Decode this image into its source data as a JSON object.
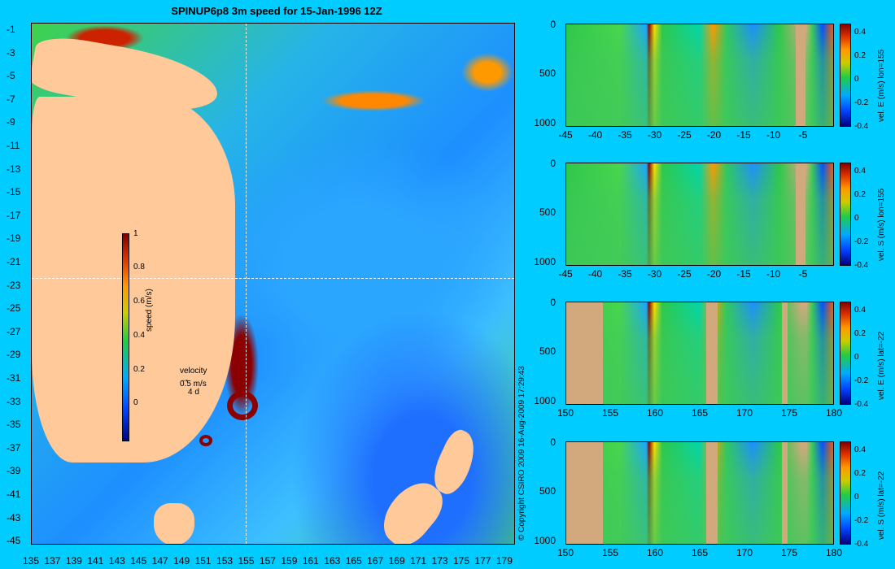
{
  "title": "SPINUP6p8 3m speed for 15-Jan-1996 12Z",
  "map": {
    "lat_labels": [
      "-1",
      "-3",
      "-5",
      "-7",
      "-9",
      "-11",
      "-13",
      "-15",
      "-17",
      "-19",
      "-21",
      "-23",
      "-25",
      "-27",
      "-29",
      "-31",
      "-33",
      "-35",
      "-37",
      "-39",
      "-41",
      "-43",
      "-45"
    ],
    "lon_labels": [
      "135",
      "137",
      "139",
      "141",
      "143",
      "145",
      "147",
      "149",
      "151",
      "153",
      "155",
      "157",
      "159",
      "161",
      "163",
      "165",
      "167",
      "169",
      "171",
      "173",
      "175",
      "177",
      "179"
    ],
    "speed_colorbar": {
      "label": "speed (m/s)",
      "ticks": [
        "1",
        "0.8",
        "0.6",
        "0.4",
        "0.2",
        "0"
      ]
    },
    "velocity_key": [
      "velocity",
      "0.5 m/s",
      "4 d"
    ],
    "colors": {
      "land": "#ffc99a",
      "background": "#00ccff"
    }
  },
  "copyright": "© Copyright CSIRO 2009  16-Aug-2009 17:29:43",
  "panels": [
    {
      "label": "vel. E (m/s) lon=155",
      "y_ticks": [
        "0",
        "500",
        "1000"
      ],
      "x_ticks": [
        "-45",
        "-40",
        "-35",
        "-30",
        "-25",
        "-20",
        "-15",
        "-10",
        "-5"
      ],
      "c_ticks": [
        "0.4",
        "0.2",
        "0",
        "-0.2",
        "-0.4"
      ]
    },
    {
      "label": "vel. S (m/s) lon=155",
      "y_ticks": [
        "0",
        "500",
        "1000"
      ],
      "x_ticks": [
        "-45",
        "-40",
        "-35",
        "-30",
        "-25",
        "-20",
        "-15",
        "-10",
        "-5"
      ],
      "c_ticks": [
        "0.4",
        "0.2",
        "0",
        "-0.2",
        "-0.4"
      ]
    },
    {
      "label": "vel. E (m/s) lat=-22",
      "y_ticks": [
        "0",
        "500",
        "1000"
      ],
      "x_ticks": [
        "150",
        "155",
        "160",
        "165",
        "170",
        "175",
        "180"
      ],
      "c_ticks": [
        "0.4",
        "0.2",
        "0",
        "-0.2",
        "-0.4"
      ]
    },
    {
      "label": "vel. S (m/s) lat=-22",
      "y_ticks": [
        "0",
        "500",
        "1000"
      ],
      "x_ticks": [
        "150",
        "155",
        "160",
        "165",
        "170",
        "175",
        "180"
      ],
      "c_ticks": [
        "0.4",
        "0.2",
        "0",
        "-0.2",
        "-0.4"
      ]
    }
  ],
  "chart_data": [
    {
      "type": "heatmap",
      "title": "SPINUP6p8 3m speed for 15-Jan-1996 12Z",
      "xlabel": "",
      "ylabel": "",
      "xlim": [
        135,
        180
      ],
      "ylim": [
        -45,
        0
      ],
      "colorbar": {
        "label": "speed (m/s)",
        "range": [
          0,
          1
        ]
      },
      "crosshair": {
        "lon": 155,
        "lat": -22
      }
    },
    {
      "type": "heatmap",
      "label": "vel. E (m/s) lon=155",
      "xlim": [
        -45,
        0
      ],
      "ylim": [
        1000,
        0
      ],
      "crange": [
        -0.4,
        0.4
      ]
    },
    {
      "type": "heatmap",
      "label": "vel. S (m/s) lon=155",
      "xlim": [
        -45,
        0
      ],
      "ylim": [
        1000,
        0
      ],
      "crange": [
        -0.4,
        0.4
      ]
    },
    {
      "type": "heatmap",
      "label": "vel. E (m/s) lat=-22",
      "xlim": [
        150,
        180
      ],
      "ylim": [
        1000,
        0
      ],
      "crange": [
        -0.4,
        0.4
      ]
    },
    {
      "type": "heatmap",
      "label": "vel. S (m/s) lat=-22",
      "xlim": [
        150,
        180
      ],
      "ylim": [
        1000,
        0
      ],
      "crange": [
        -0.4,
        0.4
      ]
    }
  ]
}
